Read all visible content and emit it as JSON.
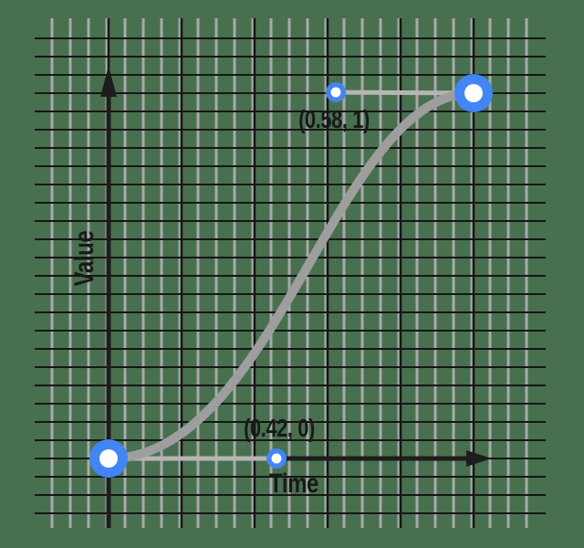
{
  "chart_data": {
    "type": "line",
    "subtype": "cubic-bezier-easing",
    "title": "",
    "xlabel": "Time",
    "ylabel": "Value",
    "xlim": [
      0,
      1
    ],
    "ylim": [
      0,
      1
    ],
    "grid": true,
    "start_point": {
      "x": 0,
      "y": 0
    },
    "end_point": {
      "x": 1,
      "y": 1
    },
    "control_points": [
      {
        "x": 0.42,
        "y": 0,
        "label": "(0.42, 0)"
      },
      {
        "x": 0.58,
        "y": 1,
        "label": "(0.58, 1)"
      }
    ],
    "easing_function": "cubic-bezier(0.42, 0, 0.58, 1)"
  },
  "colors": {
    "background": "#48704F",
    "grid_minor": "#A9A9A9",
    "grid_major": "#161616",
    "axis": "#1D1D1D",
    "curve": "#9E9E9E",
    "connector": "#B5B5B5",
    "point_blue": "#4285F4",
    "point_center": "#FFFFFF",
    "text": "#191919"
  }
}
